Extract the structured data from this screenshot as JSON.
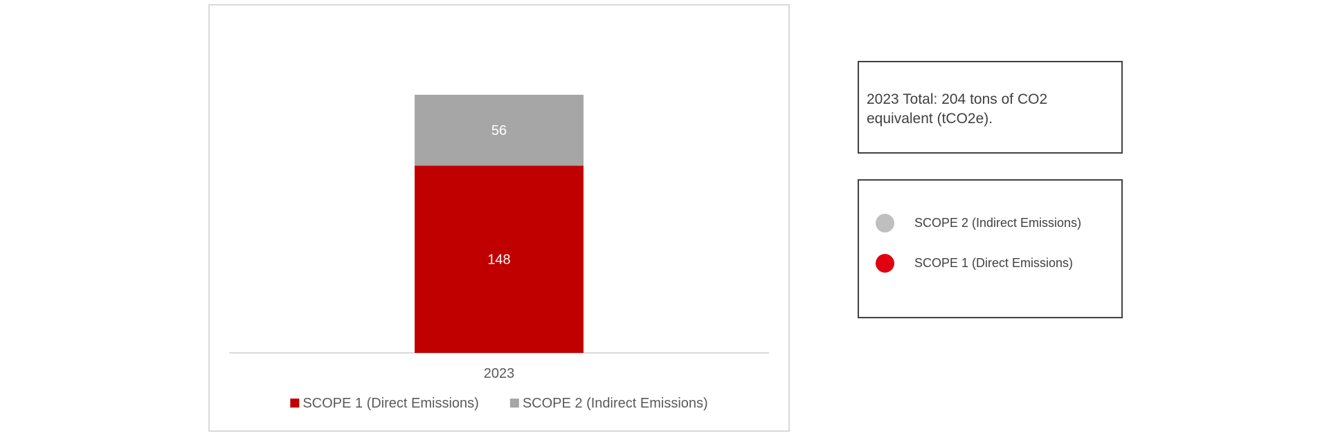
{
  "chart_data": {
    "type": "bar",
    "stacked": true,
    "categories": [
      "2023"
    ],
    "series": [
      {
        "name": "SCOPE 1 (Direct Emissions)",
        "values": [
          148
        ],
        "color": "#c00000"
      },
      {
        "name": "SCOPE 2 (Indirect Emissions)",
        "values": [
          56
        ],
        "color": "#a6a6a6"
      }
    ],
    "ylim": [
      0,
      210
    ],
    "grid": false,
    "legend": "bottom",
    "label_color": "#ffffff",
    "text_color": "#595959",
    "axis_color": "#d9d9d9"
  },
  "summary": {
    "total_text": "2023 Total:  204 tons of CO2 equivalent (tCO2e)."
  },
  "side_legend": {
    "items": [
      {
        "label": "SCOPE 2 (Indirect Emissions)",
        "color": "#bfbfbf"
      },
      {
        "label": "SCOPE 1 (Direct Emissions)",
        "color": "#e00010"
      }
    ]
  }
}
